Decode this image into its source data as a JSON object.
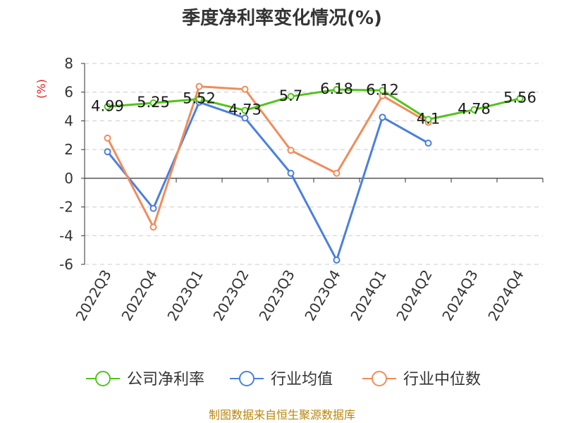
{
  "chart_data": {
    "type": "line",
    "title": "季度净利率变化情况(%)",
    "ylabel": "(%)",
    "xlabel": "",
    "categories": [
      "2022Q3",
      "2022Q4",
      "2023Q1",
      "2023Q2",
      "2023Q3",
      "2023Q4",
      "2024Q1",
      "2024Q2",
      "2024Q3",
      "2024Q4"
    ],
    "ylim": [
      -6,
      8
    ],
    "yticks": [
      "8",
      "6",
      "4",
      "2",
      "0",
      "-2",
      "-4",
      "-6"
    ],
    "grid": true,
    "legend": "bottom",
    "series": [
      {
        "name": "公司净利率",
        "color": "#52c41a",
        "values": [
          4.99,
          5.25,
          5.52,
          4.73,
          5.7,
          6.18,
          6.12,
          4.1,
          4.78,
          5.56
        ],
        "labels": [
          "4.99",
          "5.25",
          "5.52",
          "4.73",
          "5.7",
          "6.18",
          "6.12",
          "4.1",
          "4.78",
          "5.56"
        ]
      },
      {
        "name": "行业均值",
        "color": "#4a7fe0",
        "values": [
          1.85,
          -2.1,
          5.3,
          4.2,
          0.35,
          -5.7,
          4.25,
          2.45,
          null,
          null
        ]
      },
      {
        "name": "行业中位数",
        "color": "#f08c5a",
        "values": [
          2.8,
          -3.4,
          6.4,
          6.2,
          1.95,
          0.35,
          5.75,
          3.9,
          null,
          null
        ]
      }
    ]
  },
  "source": "制图数据来自恒生聚源数据库"
}
